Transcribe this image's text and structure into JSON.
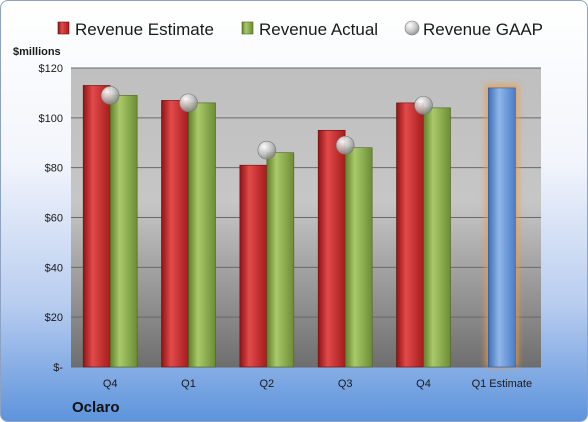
{
  "chart_data": {
    "type": "bar",
    "ylabel": "$millions",
    "ylim": [
      0,
      120
    ],
    "yticks": [
      0,
      20,
      40,
      60,
      80,
      100,
      120
    ],
    "ytick_labels": [
      "$-",
      "$20",
      "$40",
      "$60",
      "$80",
      "$100",
      "$120"
    ],
    "categories": [
      "Q4",
      "Q1",
      "Q2",
      "Q3",
      "Q4",
      "Q1 Estimate"
    ],
    "series": [
      {
        "name": "Revenue Estimate",
        "kind": "bar",
        "color": "#cc2a2a",
        "values": [
          113,
          107,
          81,
          95,
          106,
          null
        ]
      },
      {
        "name": "Revenue Actual",
        "kind": "bar",
        "color": "#8db04a",
        "values": [
          109,
          106,
          86,
          88,
          104,
          null
        ]
      },
      {
        "name": "Revenue GAAP",
        "kind": "marker",
        "color": "#b8b8b8",
        "values": [
          109,
          106,
          87,
          89,
          105,
          null
        ]
      },
      {
        "name": "Q1 Estimate",
        "kind": "bar",
        "color": "#6c9ad8",
        "values": [
          null,
          null,
          null,
          null,
          null,
          112
        ]
      }
    ],
    "legend": "top",
    "grid": true
  },
  "footer": {
    "company": "Oclaro"
  }
}
